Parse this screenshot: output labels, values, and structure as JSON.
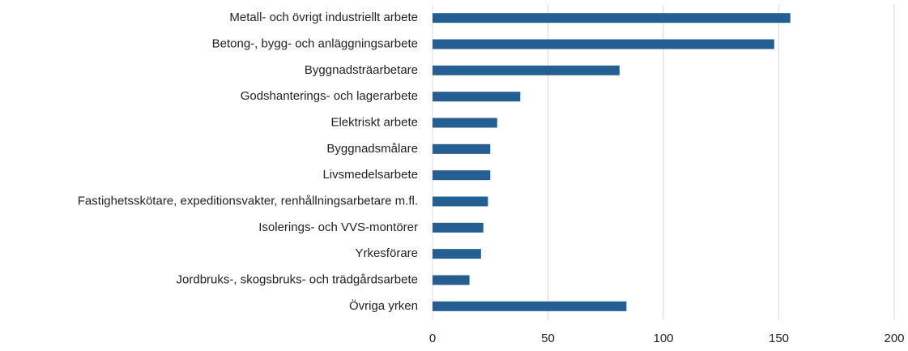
{
  "chart_data": {
    "type": "bar",
    "orientation": "horizontal",
    "categories": [
      "Metall- och övrigt industriellt arbete",
      "Betong-, bygg- och anläggningsarbete",
      "Byggnadsträarbetare",
      "Godshanterings- och lagerarbete",
      "Elektriskt arbete",
      "Byggnadsmålare",
      "Livsmedelsarbete",
      "Fastighetsskötare, expeditionsvakter, renhållningsarbetare m.fl.",
      "Isolerings- och VVS-montörer",
      "Yrkesförare",
      "Jordbruks-, skogsbruks- och trädgårdsarbete",
      "Övriga yrken"
    ],
    "values": [
      155,
      148,
      81,
      38,
      28,
      25,
      25,
      24,
      22,
      21,
      16,
      84
    ],
    "color": "#255e91",
    "xlim": [
      0,
      200
    ],
    "xticks": [
      0,
      50,
      100,
      150,
      200
    ],
    "grid": true
  }
}
